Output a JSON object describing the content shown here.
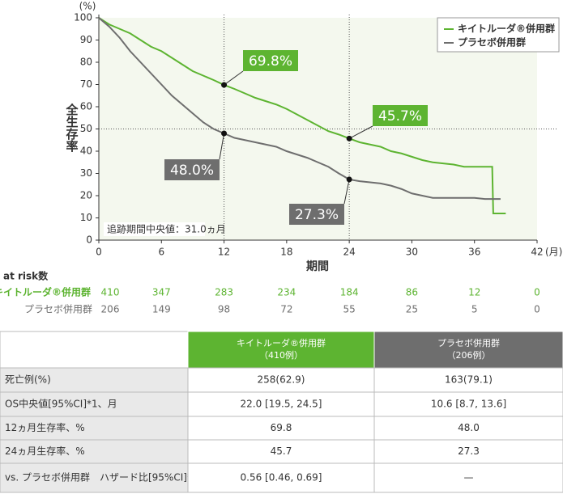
{
  "chart_data": {
    "type": "line",
    "y_unit": "(%)",
    "x_unit": "(月)",
    "ylabel": "全生存率",
    "xlabel": "期間",
    "annotation": "追跡期間中央値：31.0ヵ月",
    "xlim": [
      0,
      42
    ],
    "xticks": [
      0,
      6,
      12,
      18,
      24,
      30,
      36,
      42
    ],
    "ylim": [
      0,
      100
    ],
    "yticks": [
      0,
      10,
      20,
      30,
      40,
      50,
      60,
      70,
      80,
      90,
      100
    ],
    "ref_x": [
      12,
      24
    ],
    "ref_y": [
      50
    ],
    "legend": "top-right",
    "series": [
      {
        "name": "キイトルーダ®併用群",
        "color": "#5db431",
        "x": [
          0,
          1,
          2,
          3,
          4,
          5,
          6,
          7,
          8,
          9,
          10,
          11,
          12,
          13,
          14,
          15,
          16,
          17,
          18,
          19,
          20,
          21,
          22,
          23,
          24,
          25,
          26,
          27,
          28,
          29,
          30,
          31,
          32,
          33,
          34,
          35,
          36,
          37,
          37.7,
          37.8,
          39
        ],
        "values": [
          100,
          97,
          95,
          93,
          90,
          87,
          85,
          82,
          79,
          76,
          74,
          72,
          69.8,
          68,
          66,
          64,
          62.5,
          61,
          59,
          56.5,
          54,
          51.5,
          49,
          47.5,
          45.7,
          44,
          43,
          42,
          40,
          39,
          37.5,
          36,
          35,
          34.5,
          34,
          33,
          33,
          33,
          33,
          12,
          12
        ]
      },
      {
        "name": "プラセボ併用群",
        "color": "#6e6e6e",
        "x": [
          0,
          1,
          2,
          3,
          4,
          5,
          6,
          7,
          8,
          9,
          10,
          11,
          12,
          13,
          14,
          15,
          16,
          17,
          18,
          19,
          20,
          21,
          22,
          23,
          24,
          25,
          26,
          27,
          28,
          29,
          30,
          31,
          32,
          33,
          34,
          35,
          36,
          37,
          38.5
        ],
        "values": [
          100,
          96,
          91,
          85,
          80,
          75,
          70,
          65,
          61,
          57,
          53,
          50,
          48,
          46,
          45,
          44,
          43,
          42,
          40,
          38.5,
          37,
          35,
          33,
          30,
          27.3,
          26.5,
          26,
          25.5,
          24.5,
          23,
          21,
          20,
          19,
          19,
          19,
          19,
          19,
          18.5,
          18.5
        ]
      }
    ],
    "points": [
      {
        "series": 0,
        "x": 12,
        "value": 69.8,
        "label": "69.8%"
      },
      {
        "series": 0,
        "x": 24,
        "value": 45.7,
        "label": "45.7%"
      },
      {
        "series": 1,
        "x": 12,
        "value": 48.0,
        "label": "48.0%"
      },
      {
        "series": 1,
        "x": 24,
        "value": 27.3,
        "label": "27.3%"
      }
    ],
    "at_risk": {
      "title": "at risk数",
      "rows": [
        {
          "name": "キイトルーダ®併用群",
          "values": [
            410,
            347,
            283,
            234,
            184,
            86,
            12,
            0
          ]
        },
        {
          "name": "プラセボ併用群",
          "values": [
            206,
            149,
            98,
            72,
            55,
            25,
            5,
            0
          ]
        }
      ]
    }
  },
  "table": {
    "header": [
      [
        "キイトルーダ®併用群",
        "（410例）"
      ],
      [
        "プラセボ併用群",
        "（206例）"
      ]
    ],
    "rows": [
      [
        "死亡例(%)",
        "258(62.9)",
        "163(79.1)"
      ],
      [
        "OS中央値[95%CI]*1、月",
        "22.0 [19.5, 24.5]",
        "10.6 [8.7, 13.6]"
      ],
      [
        "12ヵ月生存率、%",
        "69.8",
        "48.0"
      ],
      [
        "24ヵ月生存率、%",
        "45.7",
        "27.3"
      ],
      [
        "vs. プラセボ併用群　ハザード比[95%CI]*2",
        "0.56 [0.46, 0.69]",
        "—"
      ]
    ]
  }
}
